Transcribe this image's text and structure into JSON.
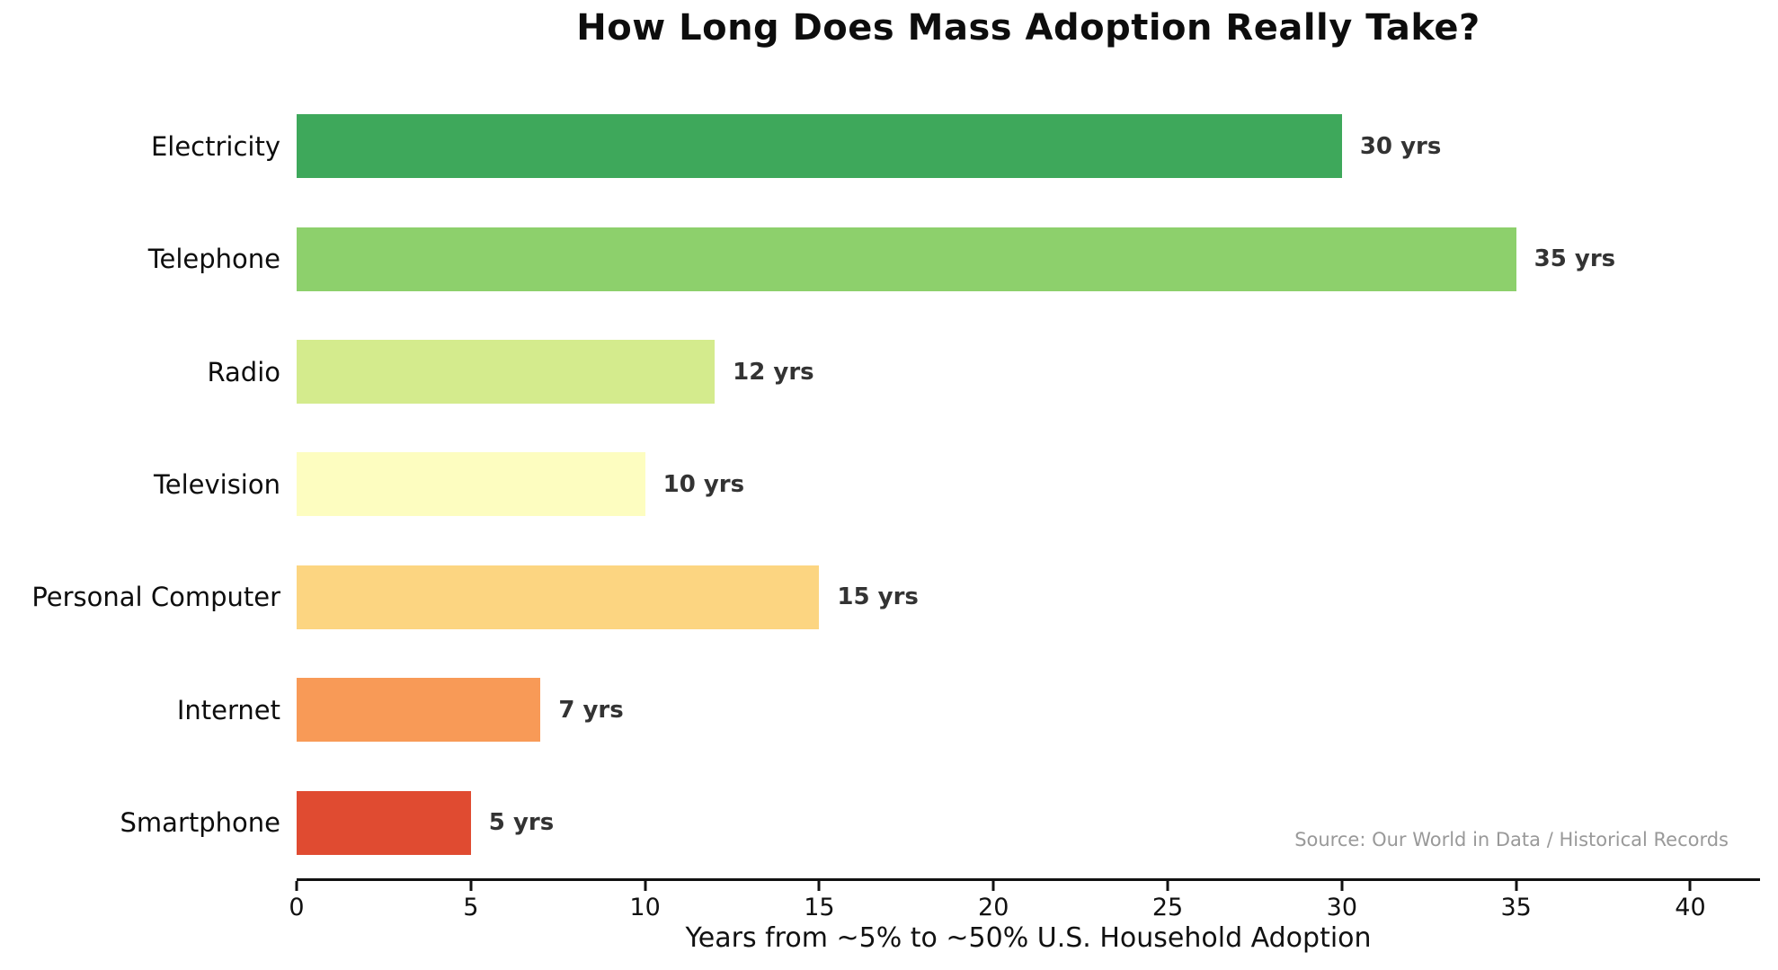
{
  "title": "How Long Does Mass Adoption Really Take?",
  "source_note": "Source: Our World in Data / Historical Records",
  "chart_data": {
    "type": "bar",
    "orientation": "horizontal",
    "title": "How Long Does Mass Adoption Really Take?",
    "xlabel": "Years from ~5% to ~50% U.S. Household Adoption",
    "ylabel": "",
    "categories": [
      "Electricity",
      "Telephone",
      "Radio",
      "Television",
      "Personal Computer",
      "Internet",
      "Smartphone"
    ],
    "values": [
      30,
      35,
      12,
      10,
      15,
      7,
      5
    ],
    "value_labels": [
      "30 yrs",
      "35 yrs",
      "12 yrs",
      "10 yrs",
      "15 yrs",
      "7 yrs",
      "5 yrs"
    ],
    "bar_colors": [
      "#3ea85b",
      "#8dd06c",
      "#d4eb8d",
      "#fdfdc0",
      "#fcd581",
      "#f89a57",
      "#e04b31"
    ],
    "xlim": [
      0,
      42
    ],
    "xticks": [
      0,
      5,
      10,
      15,
      20,
      25,
      30,
      35,
      40
    ],
    "xtick_labels": [
      "0",
      "5",
      "10",
      "15",
      "20",
      "25",
      "30",
      "35",
      "40"
    ],
    "grid": false,
    "legend_position": "none",
    "annotation": "Source: Our World in Data / Historical Records"
  },
  "colors": {
    "background": "#ffffff",
    "title_text": "#0d0d0d",
    "category_label_text": "#0d0d0d",
    "value_label_text": "#333333",
    "axis_line": "#111111",
    "tick_label_text": "#111111",
    "source_text": "#999999"
  }
}
